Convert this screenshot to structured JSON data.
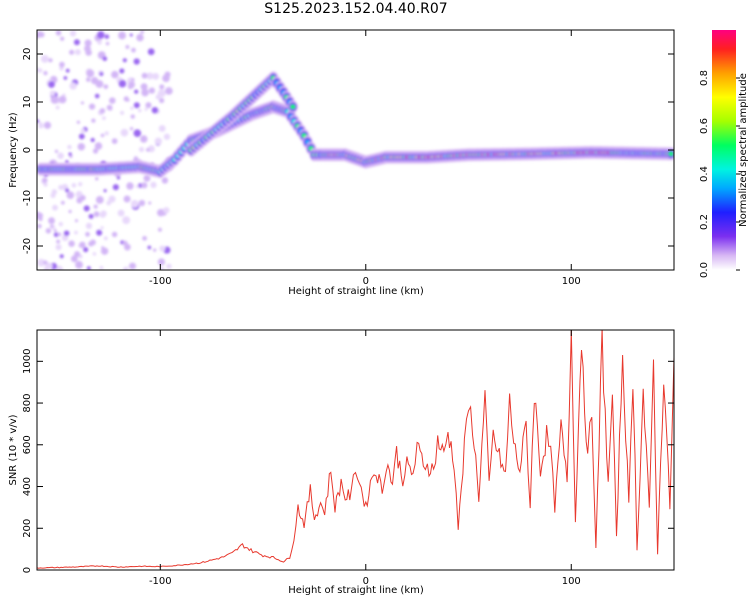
{
  "title": "S125.2023.152.04.40.R07",
  "chart_data": [
    {
      "type": "heatmap",
      "xlabel": "Height of straight line (km)",
      "ylabel": "Frequency (Hz)",
      "xlim": [
        -160,
        150
      ],
      "ylim": [
        -25,
        25
      ],
      "x_ticks": [
        -100,
        0,
        100
      ],
      "y_ticks": [
        -20,
        -10,
        0,
        10,
        20
      ],
      "colorbar": {
        "label": "Normalized spectral amplitude",
        "range": [
          0,
          1
        ],
        "ticks": [
          0.0,
          0.2,
          0.4,
          0.6,
          0.8
        ],
        "colormap": [
          "#ffffff",
          "#d8b8f4",
          "#7b2ff0",
          "#1f1fff",
          "#00a8ff",
          "#00f4e0",
          "#00ff60",
          "#a6ff00",
          "#ffff00",
          "#ffa000",
          "#ff2020",
          "#ff0080"
        ]
      },
      "features": [
        {
          "name": "",
          "points": [
            [
              -158,
              -4
            ],
            [
              -130,
              -4
            ],
            [
              -110,
              -3.5
            ],
            [
              -100,
              -4.5
            ],
            [
              -93,
              -2
            ],
            [
              -85,
              2
            ],
            [
              -72,
              4
            ],
            [
              -55,
              7.5
            ],
            [
              -45,
              9
            ],
            [
              -38,
              8
            ],
            [
              -30,
              3
            ],
            [
              -25,
              -1
            ],
            [
              -20,
              -1
            ],
            [
              -10,
              -1
            ],
            [
              0,
              -2.5
            ],
            [
              10,
              -1.5
            ],
            [
              30,
              -1.5
            ],
            [
              50,
              -1
            ],
            [
              80,
              -0.8
            ],
            [
              110,
              -0.5
            ],
            [
              150,
              -0.8
            ]
          ]
        },
        {
          "name": "",
          "points": [
            [
              -85,
              0
            ],
            [
              -65,
              7
            ],
            [
              -55,
              11
            ],
            [
              -45,
              15
            ],
            [
              -40,
              12
            ],
            [
              -34,
              8
            ]
          ]
        }
      ],
      "noise_region_x": [
        -160,
        -95
      ]
    },
    {
      "type": "line",
      "xlabel": "Height of straight line (km)",
      "ylabel": "SNR (10 * v/v)",
      "xlim": [
        -160,
        150
      ],
      "ylim": [
        0,
        1150
      ],
      "x_ticks": [
        -100,
        0,
        100
      ],
      "y_ticks": [
        0,
        200,
        400,
        600,
        800,
        1000
      ],
      "color": "#e8392e",
      "series": [
        {
          "x": [
            -160,
            -150,
            -140,
            -130,
            -120,
            -110,
            -100,
            -90,
            -80,
            -70,
            -65,
            -60,
            -55,
            -50,
            -45,
            -40,
            -37,
            -35,
            -33,
            -30,
            -27,
            -25,
            -22,
            -20,
            -17,
            -15,
            -12,
            -10,
            -7,
            -5,
            -3,
            0,
            3,
            5,
            8,
            10,
            13,
            15,
            18,
            20,
            23,
            25,
            28,
            30,
            33,
            35,
            38,
            40,
            43,
            45,
            48,
            50,
            52,
            55,
            58,
            60,
            62,
            65,
            68,
            70,
            72,
            75,
            78,
            80,
            82,
            85,
            88,
            90,
            92,
            95,
            98,
            100,
            102,
            105,
            108,
            110,
            112,
            115,
            118,
            120,
            122,
            125,
            128,
            130,
            132,
            135,
            138,
            140,
            142,
            145,
            148,
            150
          ],
          "y": [
            10,
            12,
            15,
            20,
            14,
            18,
            16,
            24,
            35,
            60,
            80,
            120,
            90,
            70,
            60,
            40,
            60,
            150,
            300,
            220,
            380,
            250,
            320,
            280,
            480,
            300,
            420,
            350,
            360,
            500,
            420,
            300,
            450,
            480,
            380,
            520,
            420,
            560,
            440,
            500,
            460,
            580,
            520,
            500,
            480,
            620,
            550,
            660,
            520,
            200,
            580,
            780,
            700,
            350,
            820,
            400,
            640,
            540,
            450,
            820,
            600,
            480,
            700,
            300,
            860,
            480,
            640,
            560,
            300,
            680,
            420,
            1150,
            250,
            1120,
            520,
            780,
            100,
            1100,
            400,
            850,
            150,
            1050,
            300,
            950,
            100,
            850,
            280,
            1000,
            80,
            950,
            300,
            1020
          ]
        }
      ]
    }
  ]
}
